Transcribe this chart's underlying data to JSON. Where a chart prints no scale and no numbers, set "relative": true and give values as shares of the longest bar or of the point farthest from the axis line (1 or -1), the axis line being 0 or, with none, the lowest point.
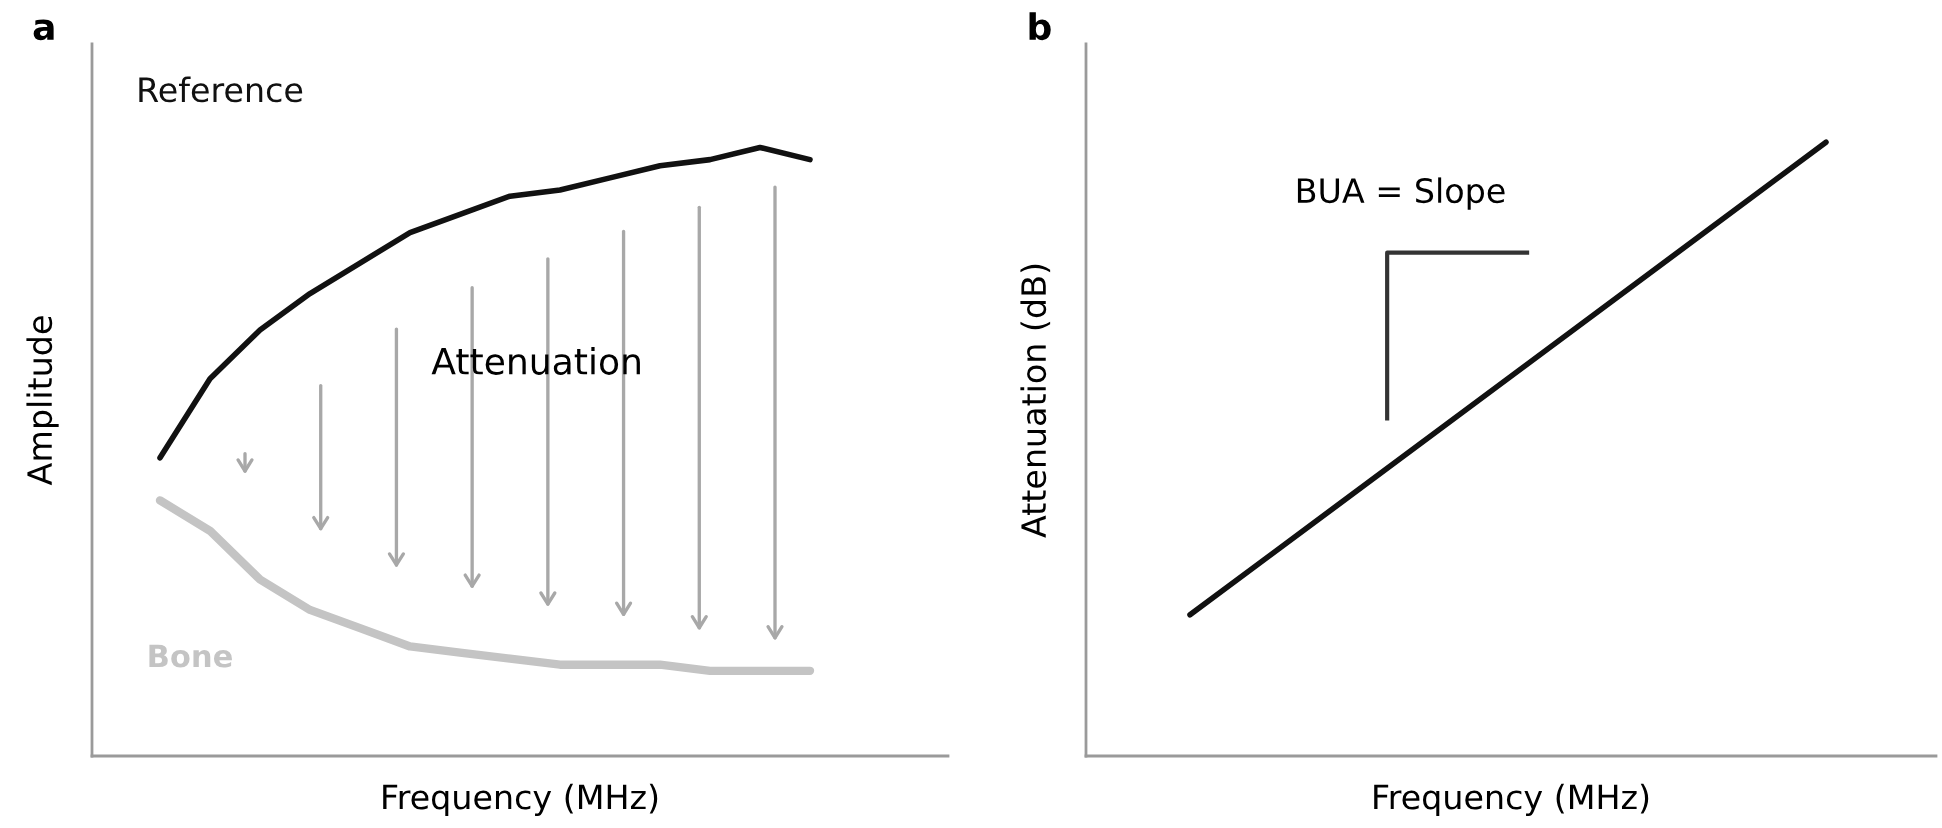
{
  "chart_data": [
    {
      "type": "line",
      "title": "a",
      "xlabel": "Frequency (MHz)",
      "ylabel": "Amplitude",
      "relative": true,
      "tick_labels": false,
      "grid": false,
      "legend": false,
      "marker": "none",
      "categories": [
        null,
        null,
        null,
        null,
        null,
        null,
        null,
        null,
        null,
        null,
        null,
        null,
        null,
        null
      ],
      "series": [
        {
          "name": "Reference",
          "color": "#111111",
          "values": [
            0.49,
            0.62,
            0.7,
            0.76,
            0.81,
            0.86,
            0.89,
            0.92,
            0.93,
            0.95,
            0.97,
            0.98,
            1.0,
            0.98
          ]
        },
        {
          "name": "Bone",
          "color": "#c4c4c4",
          "values": [
            0.42,
            0.37,
            0.29,
            0.24,
            0.21,
            0.18,
            0.17,
            0.16,
            0.15,
            0.15,
            0.15,
            0.14,
            0.14,
            0.14
          ]
        }
      ],
      "annotations": [
        "Attenuation"
      ]
    },
    {
      "type": "line",
      "title": "b",
      "xlabel": "Frequency (MHz)",
      "ylabel": "Attenuation (dB)",
      "relative": true,
      "tick_labels": false,
      "grid": false,
      "legend": false,
      "marker": "none",
      "categories": [
        null,
        null
      ],
      "series": [
        {
          "color": "#111111",
          "values": [
            0.23,
            1.0
          ]
        }
      ],
      "annotations": [
        "BUA = Slope"
      ]
    }
  ]
}
